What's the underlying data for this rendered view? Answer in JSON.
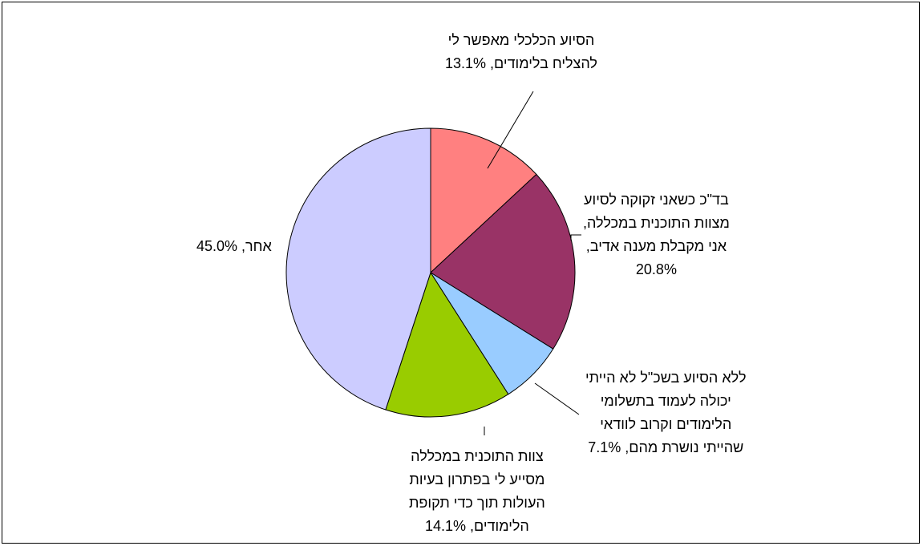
{
  "chart_data": {
    "type": "pie",
    "title": "",
    "series": [
      {
        "values": [
          13.1,
          20.8,
          7.1,
          14.1,
          45.0
        ],
        "unit": "%"
      }
    ],
    "slices": [
      {
        "label_lines": [
          "הסיוע הכלכלי מאפשר לי",
          "להצליח בלימודים, 13.1%"
        ],
        "value": 13.1,
        "color": "#FF8080"
      },
      {
        "label_lines": [
          "בד\"כ כשאני זקוקה לסיוע",
          "מצוות התוכנית במכללה,",
          "אני מקבלת מענה אדיב,",
          "20.8%"
        ],
        "value": 20.8,
        "color": "#993366"
      },
      {
        "label_lines": [
          "ללא הסיוע בשכ\"ל לא הייתי",
          "יכולה לעמוד בתשלומי",
          "הלימודים וקרוב לוודאי",
          "שהייתי נושרת מהם, 7.1%"
        ],
        "value": 7.1,
        "color": "#99CCFF"
      },
      {
        "label_lines": [
          "צוות התוכנית במכללה",
          "מסייע לי בפתרון בעיות",
          "העולות תוך כדי תקופת",
          "הלימודים, 14.1%"
        ],
        "value": 14.1,
        "color": "#99CC00"
      },
      {
        "label_lines": [
          "אחר, 45.0%"
        ],
        "value": 45.0,
        "color": "#CCCCFF"
      }
    ],
    "start_angle_deg": 0,
    "direction": "clockwise",
    "legend": "none"
  }
}
